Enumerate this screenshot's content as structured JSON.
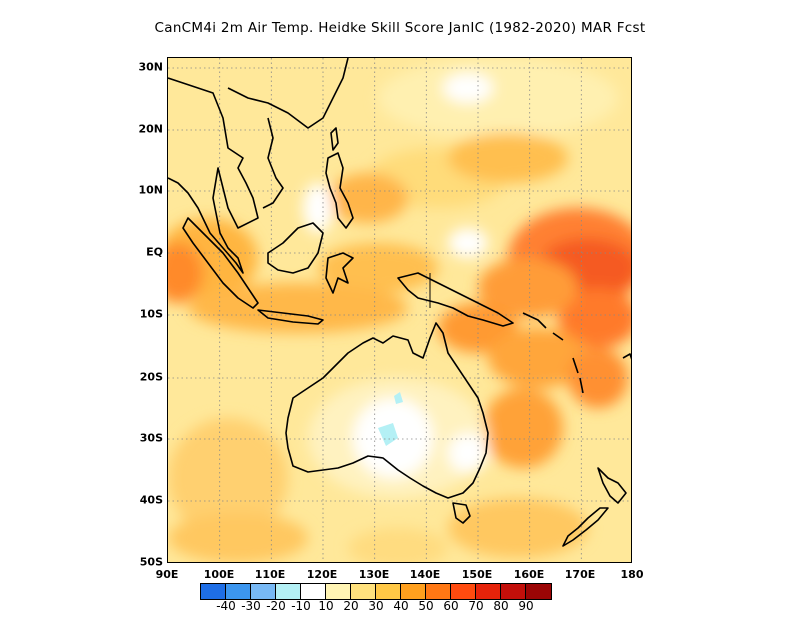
{
  "title": "CanCM4i  2m Air Temp. Heidke Skill Score JanIC (1982-2020) MAR Fcst",
  "map": {
    "lat_labels": [
      "30N",
      "20N",
      "10N",
      "EQ",
      "10S",
      "20S",
      "30S",
      "40S",
      "50S"
    ],
    "lon_labels": [
      "90E",
      "100E",
      "110E",
      "120E",
      "130E",
      "140E",
      "150E",
      "160E",
      "170E",
      "180"
    ],
    "lon_range": [
      90,
      180
    ],
    "lat_range": [
      -50,
      32
    ],
    "land_mask_color": "#000000",
    "gridlines": "dotted"
  },
  "colorbar": {
    "colors": [
      "#1e6ee6",
      "#3c96ef",
      "#78b9f5",
      "#b4f0f5",
      "#ffffff",
      "#fff4b4",
      "#ffe17d",
      "#ffc846",
      "#ffa01e",
      "#ff7814",
      "#ff4b0f",
      "#e6230a",
      "#c30f0a",
      "#9b0505"
    ],
    "labels": [
      "-40",
      "-30",
      "-20",
      "-10",
      "10",
      "20",
      "30",
      "40",
      "50",
      "60",
      "70",
      "80",
      "90"
    ]
  }
}
